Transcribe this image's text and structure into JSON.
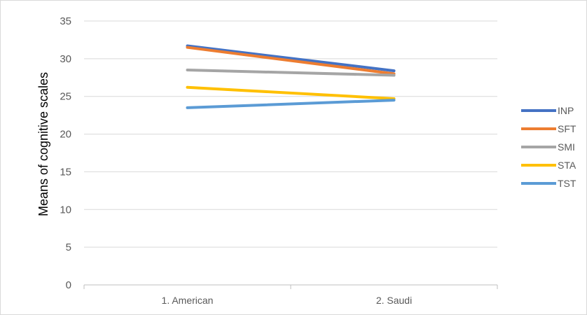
{
  "chart_data": {
    "type": "line",
    "title": "",
    "xlabel": "",
    "ylabel": "Means of cognitive scales",
    "categories": [
      "1. American",
      "2. Saudi"
    ],
    "ylim": [
      0,
      35
    ],
    "yticks": [
      0,
      5,
      10,
      15,
      20,
      25,
      30,
      35
    ],
    "grid": true,
    "legend_position": "right",
    "series": [
      {
        "name": "INP",
        "values": [
          31.7,
          28.4
        ],
        "color": "#4472C4"
      },
      {
        "name": "SFT",
        "values": [
          31.5,
          28.0
        ],
        "color": "#ED7D31"
      },
      {
        "name": "SMI",
        "values": [
          28.5,
          27.8
        ],
        "color": "#A5A5A5"
      },
      {
        "name": "STA",
        "values": [
          26.2,
          24.7
        ],
        "color": "#FFC000"
      },
      {
        "name": "TST",
        "values": [
          23.5,
          24.5
        ],
        "color": "#5B9BD5"
      }
    ]
  }
}
